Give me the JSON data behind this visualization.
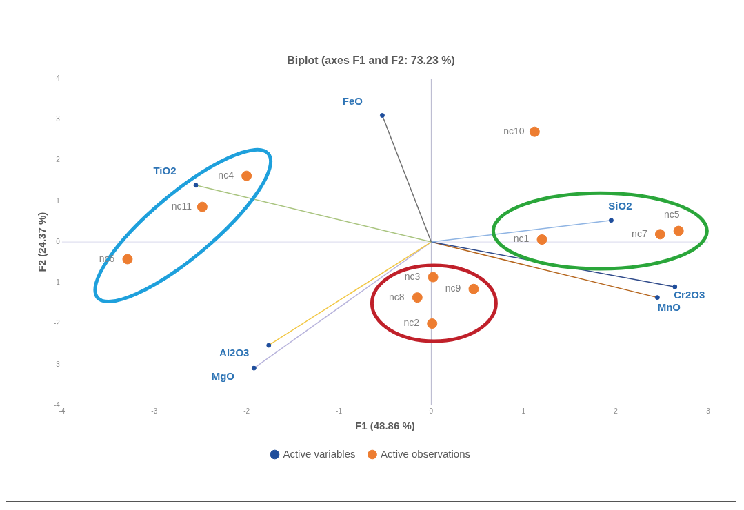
{
  "chart_data": {
    "type": "scatter",
    "title": "Biplot (axes F1 and F2: 73.23 %)",
    "xlabel": "F1 (48.86 %)",
    "ylabel": "F2 (24.37 %)",
    "xlim": [
      -4,
      3
    ],
    "xticks": [
      -4,
      -3,
      -2,
      -1,
      0,
      1,
      2,
      3
    ],
    "ylim": [
      -4,
      4
    ],
    "yticks": [
      -4,
      -3,
      -2,
      -1,
      0,
      1,
      2,
      3,
      4
    ],
    "grid": false,
    "legend": "bottom",
    "ref_lines": [
      {
        "axis": "x",
        "value": 0,
        "color": "#b4b4cc"
      },
      {
        "axis": "y",
        "value": 0,
        "color": "#d8d8ec"
      }
    ],
    "series": [
      {
        "name": "Active variables",
        "type": "scatter",
        "color": "#1f4e9c",
        "marker": "circle",
        "x": [
          -0.53,
          -2.55,
          1.95,
          2.64,
          2.45,
          -1.76,
          -1.92
        ],
        "values": [
          3.1,
          1.39,
          0.53,
          -1.1,
          -1.36,
          -2.53,
          -3.09
        ]
      },
      {
        "name": "Active observations",
        "type": "scatter",
        "color": "#ed7d31",
        "marker": "circle",
        "x": [
          1.2,
          0.01,
          0.02,
          -2.0,
          2.68,
          -3.29,
          2.48,
          -0.15,
          0.46,
          1.12,
          -2.48
        ],
        "values": [
          0.06,
          -2.0,
          -0.86,
          1.62,
          0.27,
          -0.42,
          0.19,
          -1.36,
          -1.15,
          2.7,
          0.86
        ]
      },
      {
        "type": "line",
        "color": "#707070",
        "x": [
          0,
          -0.53
        ],
        "values": [
          0,
          3.1
        ]
      },
      {
        "type": "line",
        "color": "#a9c47f",
        "x": [
          0,
          -2.55
        ],
        "values": [
          0,
          1.39
        ]
      },
      {
        "type": "line",
        "color": "#8fb4e3",
        "x": [
          0,
          1.95
        ],
        "values": [
          0,
          0.53
        ]
      },
      {
        "type": "line",
        "color": "#2f4a8a",
        "x": [
          0,
          2.64
        ],
        "values": [
          0,
          -1.1
        ]
      },
      {
        "type": "line",
        "color": "#b5651d",
        "x": [
          0,
          2.45
        ],
        "values": [
          0,
          -1.36
        ]
      },
      {
        "type": "line",
        "color": "#f2c744",
        "x": [
          0,
          -1.76
        ],
        "values": [
          0,
          -2.53
        ]
      },
      {
        "type": "line",
        "color": "#b8b4dc",
        "x": [
          0,
          -1.92
        ],
        "values": [
          0,
          -3.09
        ]
      }
    ],
    "annotations": [
      {
        "text": "FeO",
        "x": -0.53,
        "y": 3.1
      },
      {
        "text": "TiO2",
        "x": -2.55,
        "y": 1.39
      },
      {
        "text": "SiO2",
        "x": 1.95,
        "y": 0.53
      },
      {
        "text": "Cr2O3",
        "x": 2.64,
        "y": -1.1
      },
      {
        "text": "MnO",
        "x": 2.45,
        "y": -1.36
      },
      {
        "text": "Al2O3",
        "x": -1.76,
        "y": -2.53
      },
      {
        "text": "MgO",
        "x": -1.92,
        "y": -3.09
      },
      {
        "text": "nc1",
        "x": 1.2,
        "y": 0.06
      },
      {
        "text": "nc2",
        "x": 0.01,
        "y": -2.0
      },
      {
        "text": "nc3",
        "x": 0.02,
        "y": -0.86
      },
      {
        "text": "nc4",
        "x": -2.0,
        "y": 1.62
      },
      {
        "text": "nc5",
        "x": 2.68,
        "y": 0.27
      },
      {
        "text": "nc6",
        "x": -3.29,
        "y": -0.42
      },
      {
        "text": "nc7",
        "x": 2.48,
        "y": 0.19
      },
      {
        "text": "nc8",
        "x": -0.15,
        "y": -1.36
      },
      {
        "text": "nc9",
        "x": 0.46,
        "y": -1.15
      },
      {
        "text": "nc10",
        "x": 1.12,
        "y": 2.7
      },
      {
        "text": "nc11",
        "x": -2.48,
        "y": 0.86
      }
    ]
  }
}
